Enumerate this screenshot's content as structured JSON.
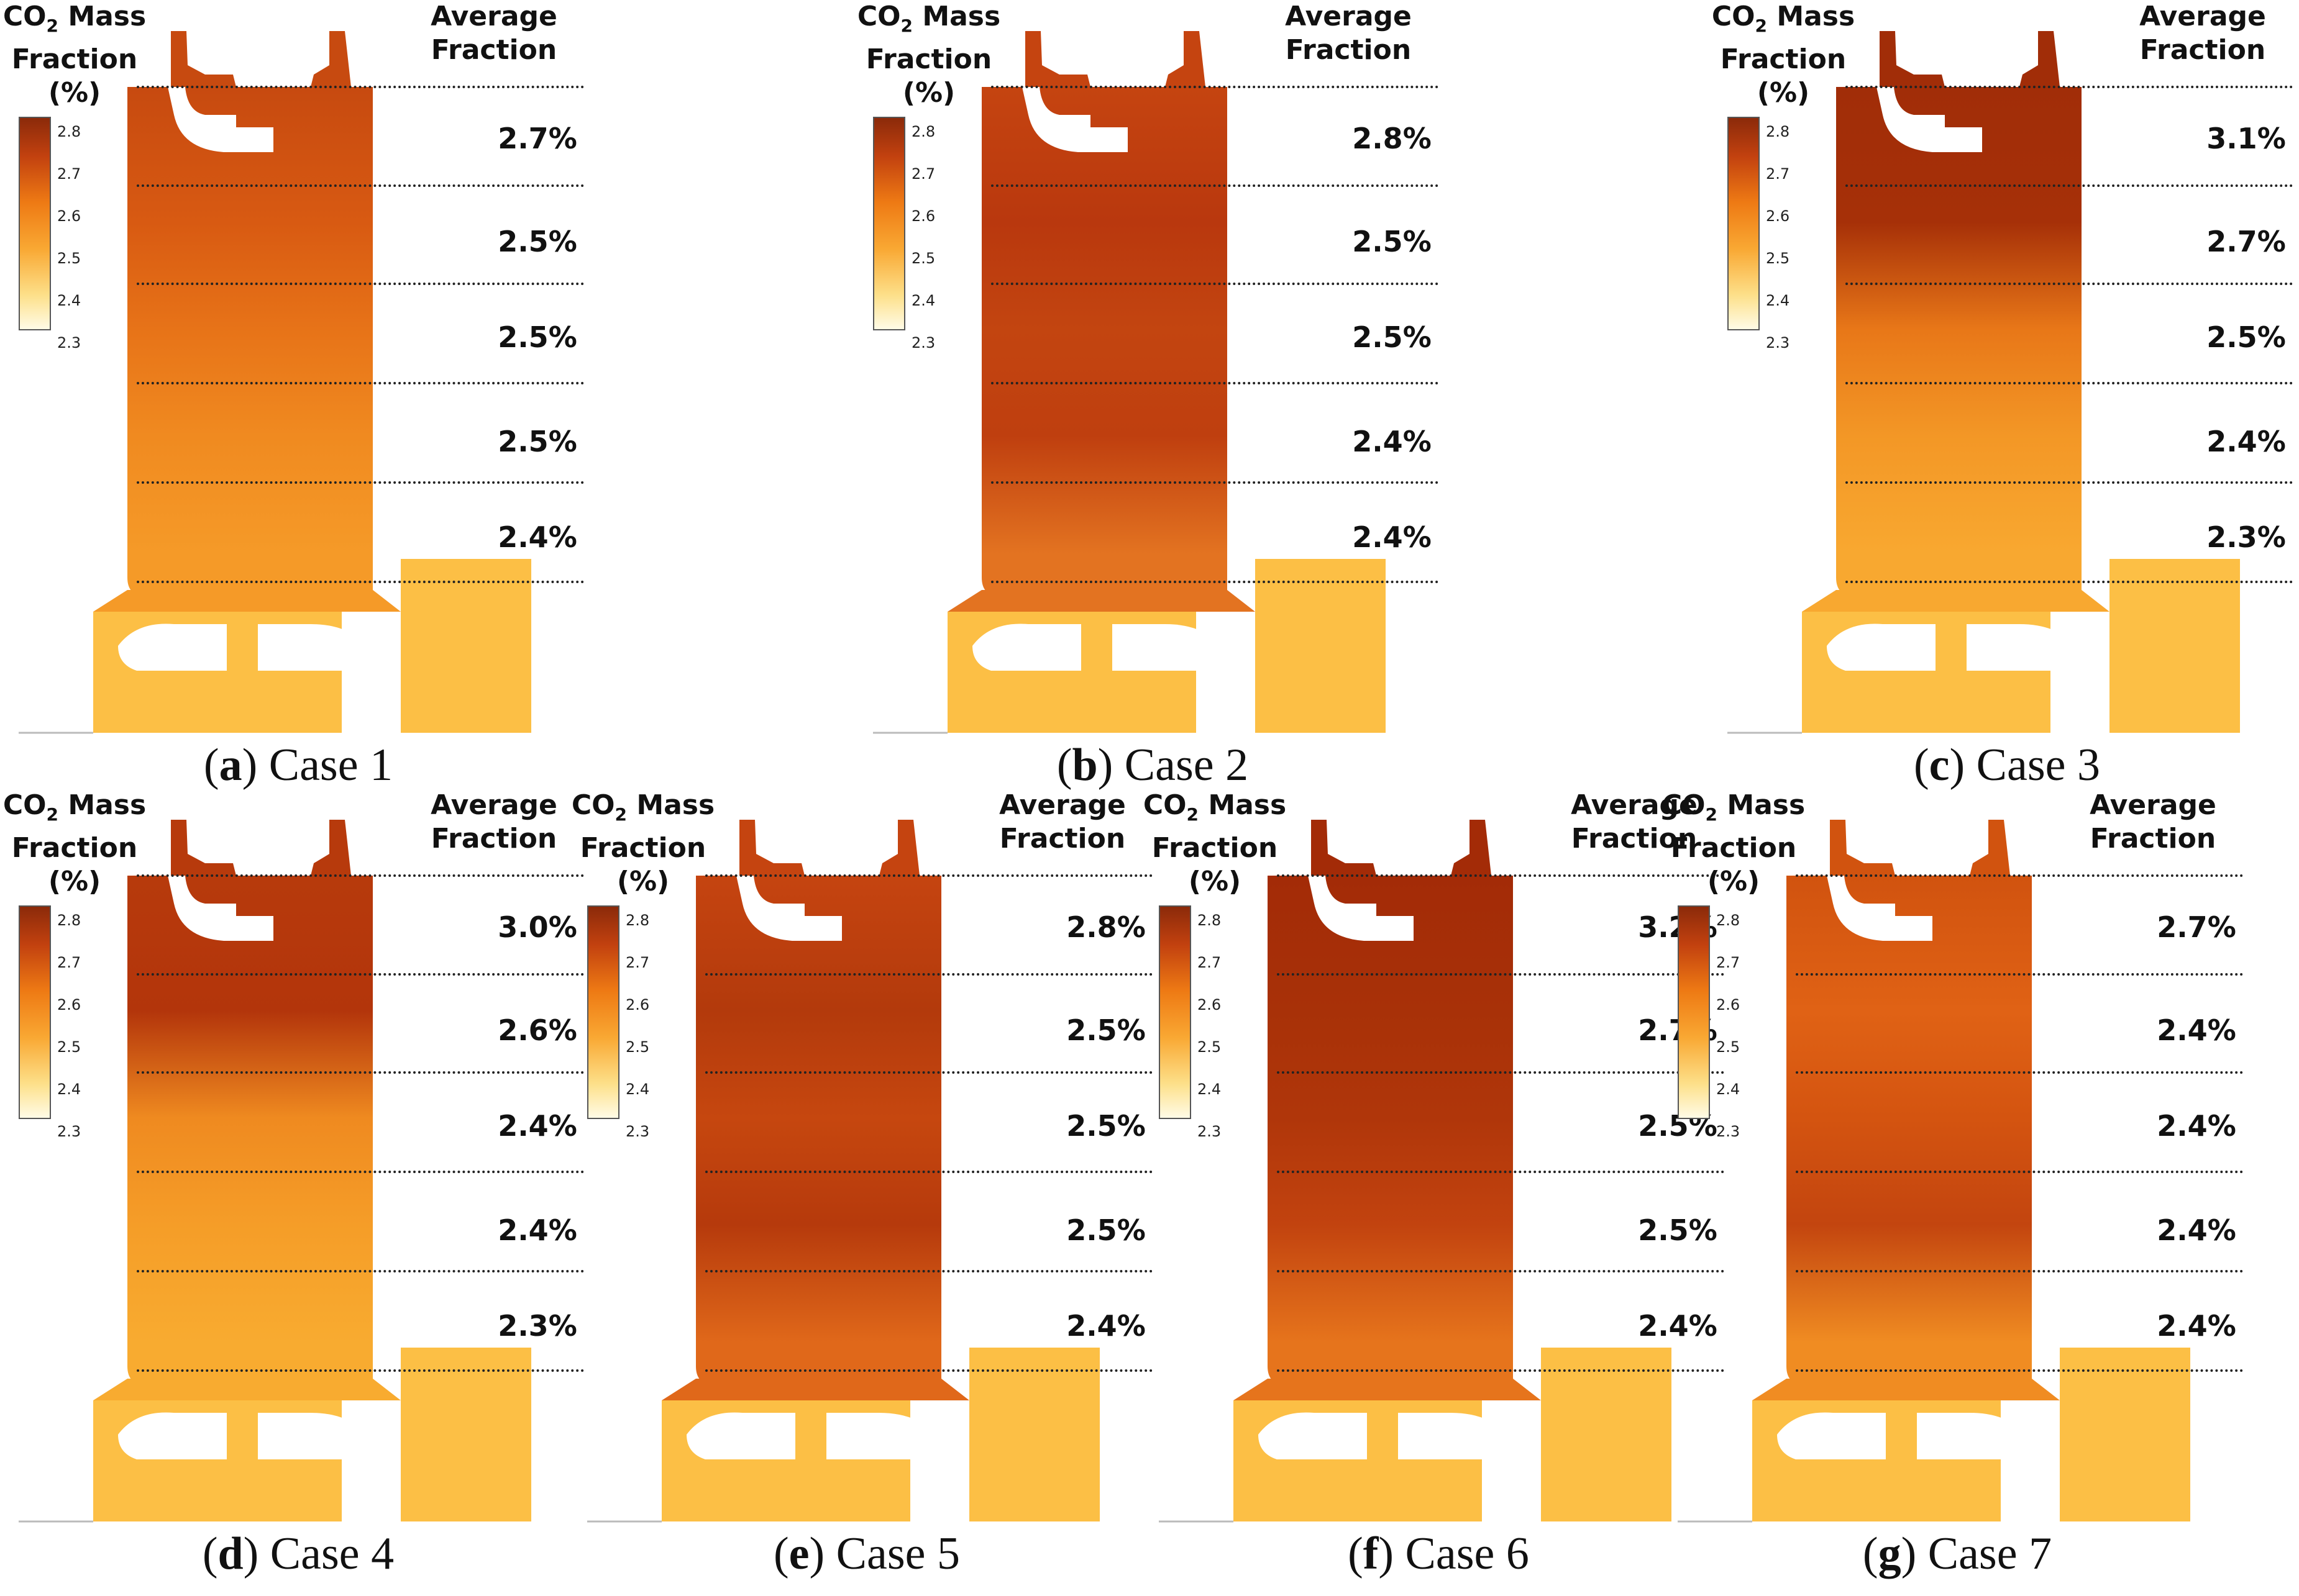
{
  "legend": {
    "title_prefix": "CO",
    "title_sub": "2",
    "title_rest": " Mass Fraction (%)",
    "ticks": [
      "2.8",
      "2.7",
      "2.6",
      "2.5",
      "2.4",
      "2.3"
    ]
  },
  "right_header": "Average Fraction",
  "panels": [
    {
      "letter": "a",
      "case": "Case 1",
      "values": [
        "2.7%",
        "2.5%",
        "2.5%",
        "2.5%",
        "2.4%"
      ],
      "colors": [
        "#c74a10",
        "#d85a12",
        "#e77318",
        "#f08a20",
        "#f59a28"
      ]
    },
    {
      "letter": "b",
      "case": "Case 2",
      "values": [
        "2.8%",
        "2.5%",
        "2.5%",
        "2.4%",
        "2.4%"
      ],
      "colors": [
        "#c54410",
        "#b9380e",
        "#c34510",
        "#bf3f0f",
        "#e37321"
      ]
    },
    {
      "letter": "c",
      "case": "Case 3",
      "values": [
        "3.1%",
        "2.7%",
        "2.5%",
        "2.4%",
        "2.3%"
      ],
      "colors": [
        "#a12d08",
        "#a63008",
        "#e87718",
        "#f39726",
        "#f8a830"
      ]
    },
    {
      "letter": "d",
      "case": "Case 4",
      "values": [
        "3.0%",
        "2.6%",
        "2.4%",
        "2.4%",
        "2.3%"
      ],
      "colors": [
        "#b73a0c",
        "#b3350b",
        "#ef8a20",
        "#f59d28",
        "#f8ab30"
      ]
    },
    {
      "letter": "e",
      "case": "Case 5",
      "values": [
        "2.8%",
        "2.5%",
        "2.5%",
        "2.5%",
        "2.4%"
      ],
      "colors": [
        "#c54410",
        "#b33a0c",
        "#c6470f",
        "#b63a0c",
        "#e0681a"
      ]
    },
    {
      "letter": "f",
      "case": "Case 6",
      "values": [
        "3.2%",
        "2.7%",
        "2.5%",
        "2.5%",
        "2.4%"
      ],
      "colors": [
        "#a32b07",
        "#a83108",
        "#b0360a",
        "#c2430f",
        "#e6741c"
      ]
    },
    {
      "letter": "g",
      "case": "Case 7",
      "values": [
        "2.7%",
        "2.4%",
        "2.4%",
        "2.4%",
        "2.4%"
      ],
      "colors": [
        "#d1530f",
        "#e06215",
        "#d45410",
        "#c3450f",
        "#f08c22"
      ]
    }
  ]
}
